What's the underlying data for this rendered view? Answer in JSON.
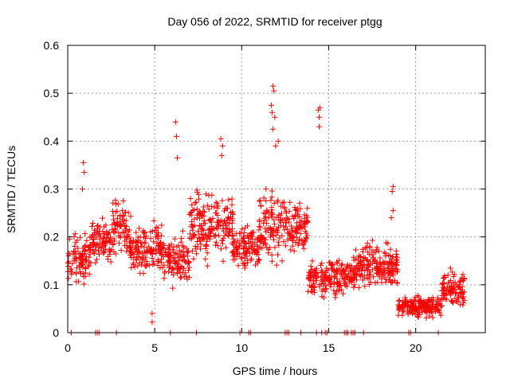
{
  "chart_data": {
    "type": "scatter",
    "title": "Day 056 of 2022, SRMTID for receiver ptgg",
    "xlabel": "GPS time / hours",
    "ylabel": "SRMTID / TECUs",
    "xlim": [
      0,
      24
    ],
    "ylim": [
      0,
      0.6
    ],
    "x_ticks": [
      0,
      5,
      10,
      15,
      20
    ],
    "y_ticks": [
      0,
      0.1,
      0.2,
      0.3,
      0.4,
      0.5,
      0.6
    ],
    "x_tick_labels": [
      "0",
      "5",
      "10",
      "15",
      "20"
    ],
    "y_tick_labels": [
      "0",
      "0.1",
      "0.2",
      "0.3",
      "0.4",
      "0.5",
      "0.6"
    ],
    "grid": true,
    "marker": "+",
    "color": "#ff0000",
    "outlier_points": [
      {
        "x": 0.9,
        "y": 0.355
      },
      {
        "x": 0.95,
        "y": 0.335
      },
      {
        "x": 0.85,
        "y": 0.3
      },
      {
        "x": 4.85,
        "y": 0.04
      },
      {
        "x": 4.85,
        "y": 0.022
      },
      {
        "x": 6.2,
        "y": 0.44
      },
      {
        "x": 6.3,
        "y": 0.365
      },
      {
        "x": 6.25,
        "y": 0.41
      },
      {
        "x": 8.8,
        "y": 0.405
      },
      {
        "x": 8.9,
        "y": 0.39
      },
      {
        "x": 8.85,
        "y": 0.37
      },
      {
        "x": 11.8,
        "y": 0.515
      },
      {
        "x": 11.85,
        "y": 0.505
      },
      {
        "x": 11.7,
        "y": 0.475
      },
      {
        "x": 11.75,
        "y": 0.46
      },
      {
        "x": 11.9,
        "y": 0.45
      },
      {
        "x": 12.1,
        "y": 0.4
      },
      {
        "x": 11.95,
        "y": 0.39
      },
      {
        "x": 11.8,
        "y": 0.425
      },
      {
        "x": 14.5,
        "y": 0.47
      },
      {
        "x": 14.4,
        "y": 0.465
      },
      {
        "x": 14.45,
        "y": 0.45
      },
      {
        "x": 14.45,
        "y": 0.43
      },
      {
        "x": 18.7,
        "y": 0.305
      },
      {
        "x": 18.65,
        "y": 0.295
      },
      {
        "x": 18.7,
        "y": 0.255
      },
      {
        "x": 18.6,
        "y": 0.24
      }
    ],
    "trend_segments": [
      {
        "from": 0.0,
        "to": 1.3,
        "center": 0.16,
        "spread": 0.07
      },
      {
        "from": 1.3,
        "to": 2.5,
        "center": 0.19,
        "spread": 0.06
      },
      {
        "from": 2.5,
        "to": 3.5,
        "center": 0.22,
        "spread": 0.08
      },
      {
        "from": 3.5,
        "to": 5.5,
        "center": 0.18,
        "spread": 0.07
      },
      {
        "from": 5.5,
        "to": 7.0,
        "center": 0.15,
        "spread": 0.07
      },
      {
        "from": 7.0,
        "to": 9.5,
        "center": 0.22,
        "spread": 0.09
      },
      {
        "from": 9.5,
        "to": 11.0,
        "center": 0.18,
        "spread": 0.06
      },
      {
        "from": 11.0,
        "to": 12.5,
        "center": 0.22,
        "spread": 0.1
      },
      {
        "from": 12.5,
        "to": 13.8,
        "center": 0.22,
        "spread": 0.07
      },
      {
        "from": 13.8,
        "to": 14.8,
        "center": 0.11,
        "spread": 0.06
      },
      {
        "from": 14.8,
        "to": 16.5,
        "center": 0.12,
        "spread": 0.05
      },
      {
        "from": 16.5,
        "to": 19.0,
        "center": 0.14,
        "spread": 0.06
      },
      {
        "from": 19.0,
        "to": 21.5,
        "center": 0.055,
        "spread": 0.03
      },
      {
        "from": 21.5,
        "to": 22.8,
        "center": 0.09,
        "spread": 0.05
      }
    ],
    "zero_value_times": [
      0.2,
      1.6,
      1.7,
      1.8,
      2.8,
      5.9,
      7.4,
      9.9,
      10.4,
      10.5,
      12.5,
      12.6,
      12.7,
      13.4,
      14.3,
      14.6,
      14.8,
      14.9,
      15.9,
      16.0,
      16.1,
      16.3,
      16.4,
      16.5,
      17.0,
      19.6,
      19.7,
      21.3
    ]
  }
}
